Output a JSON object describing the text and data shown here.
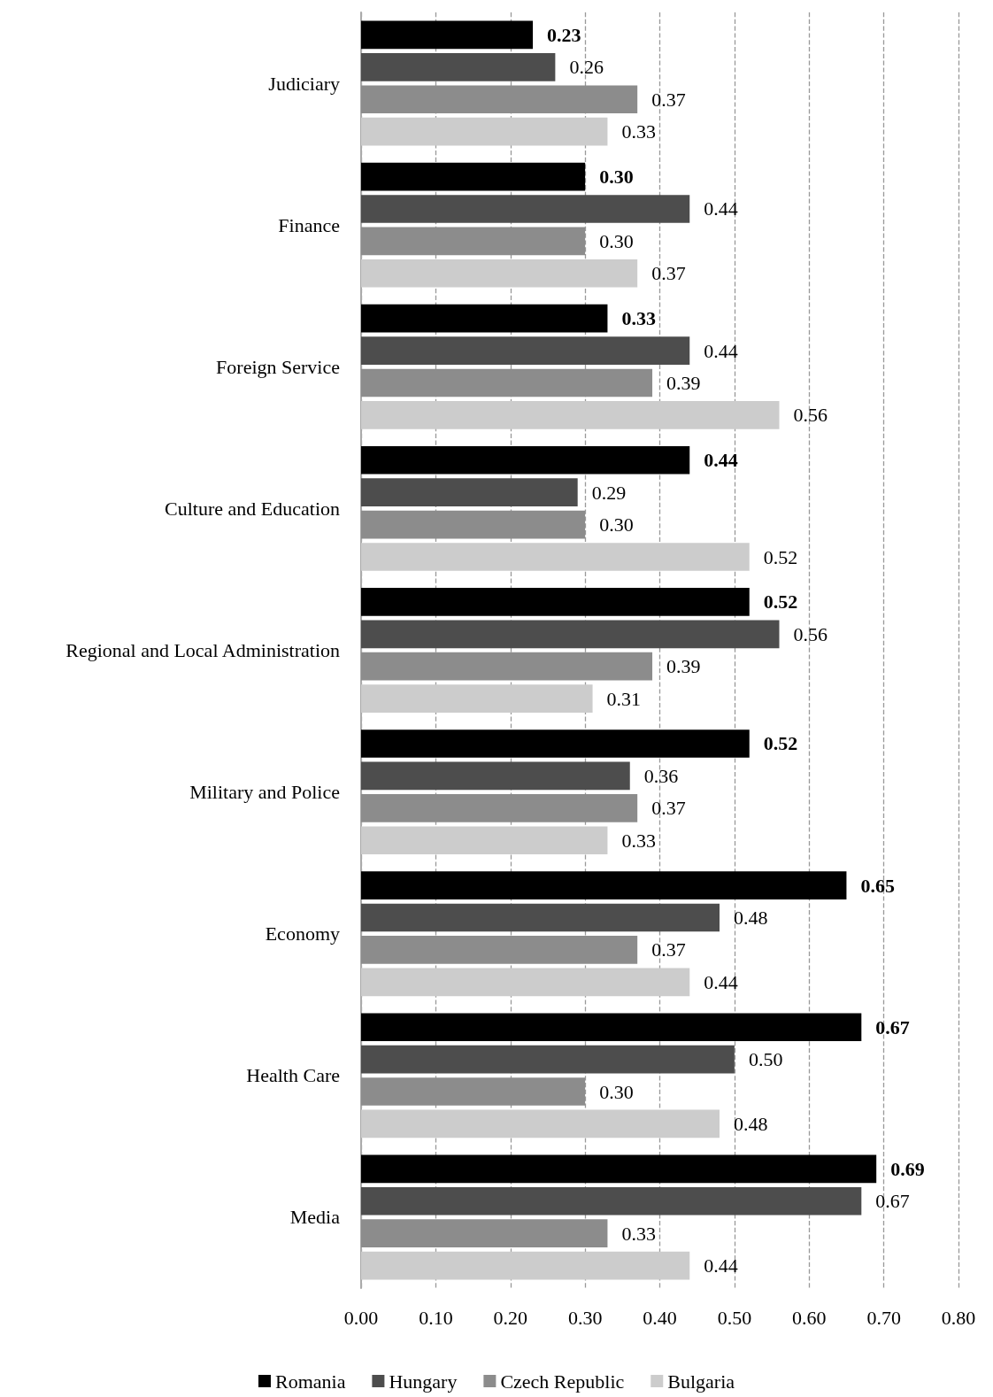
{
  "chart_data": {
    "type": "bar",
    "orientation": "horizontal",
    "categories": [
      "Judiciary",
      "Finance",
      "Foreign Service",
      "Culture and Education",
      "Regional and Local Administration",
      "Military and Police",
      "Economy",
      "Health Care",
      "Media"
    ],
    "series": [
      {
        "name": "Romania",
        "color": "#000000",
        "values": [
          0.23,
          0.3,
          0.33,
          0.44,
          0.52,
          0.52,
          0.65,
          0.67,
          0.69
        ],
        "value_labels": [
          "0.23",
          "0.30",
          "0.33",
          "0.44",
          "0.52",
          "0.52",
          "0.65",
          "0.67",
          "0.69"
        ]
      },
      {
        "name": "Hungary",
        "color": "#4d4d4d",
        "values": [
          0.26,
          0.44,
          0.44,
          0.29,
          0.56,
          0.36,
          0.48,
          0.5,
          0.67
        ],
        "value_labels": [
          "0.26",
          "0.44",
          "0.44",
          "0.29",
          "0.56",
          "0.36",
          "0.48",
          "0.50",
          "0.67"
        ]
      },
      {
        "name": "Czech Republic",
        "color": "#8c8c8c",
        "values": [
          0.37,
          0.3,
          0.39,
          0.3,
          0.39,
          0.37,
          0.37,
          0.3,
          0.33
        ],
        "value_labels": [
          "0.37",
          "0.30",
          "0.39",
          "0.30",
          "0.39",
          "0.37",
          "0.37",
          "0.30",
          "0.33"
        ]
      },
      {
        "name": "Bulgaria",
        "color": "#cccccc",
        "values": [
          0.33,
          0.37,
          0.56,
          0.52,
          0.31,
          0.33,
          0.44,
          0.48,
          0.44
        ],
        "value_labels": [
          "0.33",
          "0.37",
          "0.56",
          "0.52",
          "0.31",
          "0.33",
          "0.44",
          "0.48",
          "0.44"
        ]
      }
    ],
    "xlim": [
      0,
      0.8
    ],
    "xticks": [
      {
        "value": 0,
        "label": "0.00"
      },
      {
        "value": 0.1,
        "label": "0.10"
      },
      {
        "value": 0.2,
        "label": "0.20"
      },
      {
        "value": 0.3,
        "label": "0.30"
      },
      {
        "value": 0.4,
        "label": "0.40"
      },
      {
        "value": 0.5,
        "label": "0.50"
      },
      {
        "value": 0.6,
        "label": "0.60"
      },
      {
        "value": 0.7,
        "label": "0.70"
      },
      {
        "value": 0.8,
        "label": "0.80"
      }
    ],
    "grid": "x",
    "legend": "bottom"
  }
}
